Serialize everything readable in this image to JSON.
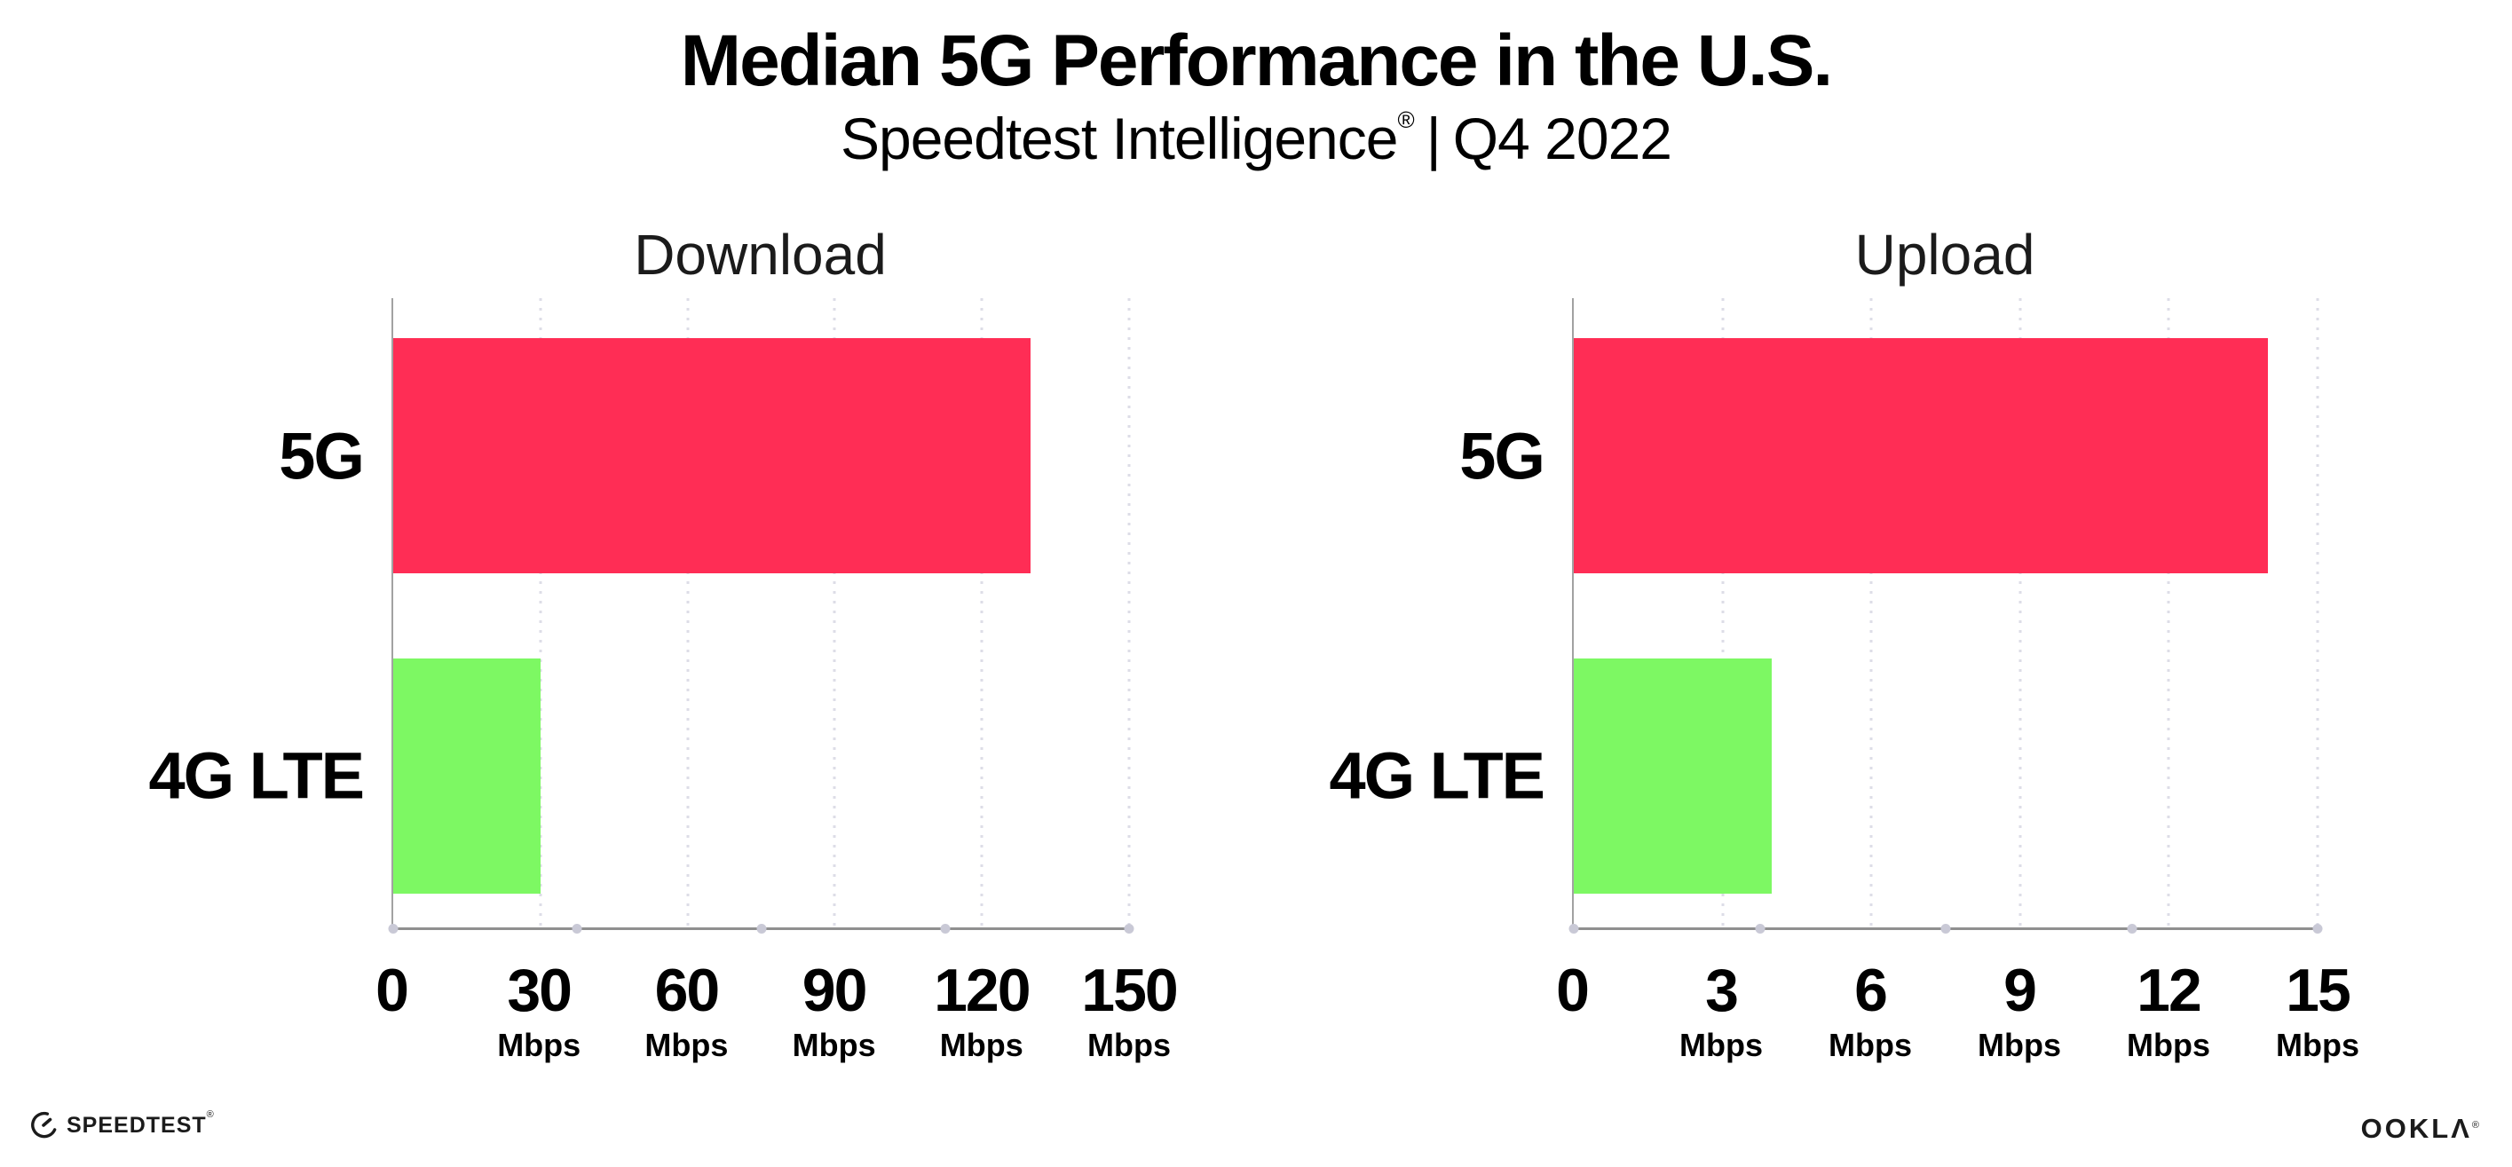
{
  "header": {
    "title": "Median 5G Performance in the U.S.",
    "subtitle_brand": "Speedtest Intelligence",
    "subtitle_mark": "®",
    "subtitle_sep": "|",
    "subtitle_period": "Q4 2022"
  },
  "colors": {
    "bar_5g": "#FF2D55",
    "bar_4g_lte": "#7DF863",
    "axis_line": "#8F8F8F",
    "gridline": "#DDDDE7",
    "axis_dot": "#C9C9D6"
  },
  "chart_data": [
    {
      "type": "bar",
      "orientation": "horizontal",
      "title": "Download",
      "categories": [
        "5G",
        "4G LTE"
      ],
      "values": [
        130,
        30
      ],
      "unit": "Mbps",
      "xlim": [
        0,
        150
      ],
      "xticks": [
        0,
        30,
        60,
        90,
        120,
        150
      ],
      "grid": "dotted-vertical",
      "legend": "none"
    },
    {
      "type": "bar",
      "orientation": "horizontal",
      "title": "Upload",
      "categories": [
        "5G",
        "4G LTE"
      ],
      "values": [
        14,
        4
      ],
      "unit": "Mbps",
      "xlim": [
        0,
        15
      ],
      "xticks": [
        0,
        3,
        6,
        9,
        12,
        15
      ],
      "grid": "dotted-vertical",
      "legend": "none"
    }
  ],
  "footer": {
    "speedtest_label": "SPEEDTEST",
    "speedtest_mark": "®",
    "ookla_label": "OOKLΛ",
    "ookla_mark": "®"
  }
}
